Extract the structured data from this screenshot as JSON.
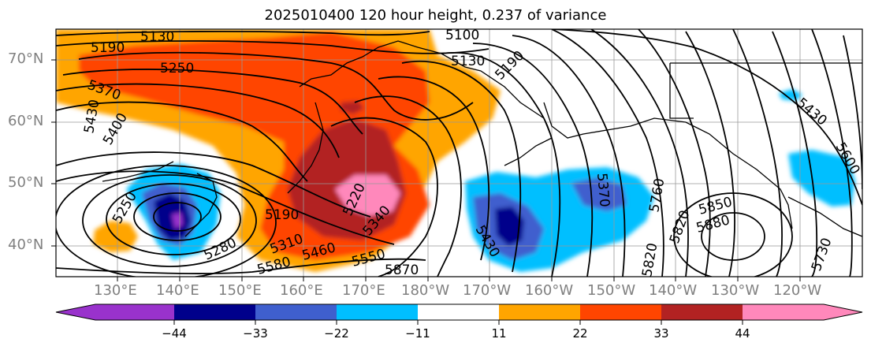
{
  "title": "2025010400 120 hour height, 0.237 of variance",
  "colors": {
    "bins": [
      "#9932cc",
      "#00008b",
      "#3f5fce",
      "#00bfff",
      "#ffffff",
      "#ffa500",
      "#ff4500",
      "#b22222",
      "#ff88bb"
    ],
    "contour": "#000000",
    "coast": "#000000",
    "grid": "#999999"
  },
  "lat_labels": [
    "70°N",
    "60°N",
    "50°N",
    "40°N"
  ],
  "lon_labels": [
    "130°E",
    "140°E",
    "150°E",
    "160°E",
    "170°E",
    "180°W",
    "170°W",
    "160°W",
    "150°W",
    "140°W",
    "130°W",
    "120°W"
  ],
  "colorbar_ticks": [
    "−44",
    "−33",
    "−22",
    "−11",
    "11",
    "22",
    "33",
    "44"
  ],
  "contour_labels": [
    "5130",
    "5100",
    "5190",
    "5130",
    "5250",
    "5190",
    "5370",
    "5430",
    "5400",
    "5190",
    "5310",
    "5220",
    "5280",
    "5250",
    "5340",
    "5460",
    "5550",
    "5580",
    "5430",
    "5870",
    "5850",
    "5880",
    "5820",
    "5760",
    "5430",
    "5730",
    "5600",
    "5820",
    "5370"
  ]
}
